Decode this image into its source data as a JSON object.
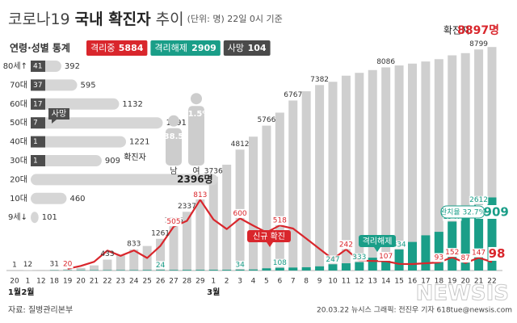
{
  "chart_data": [
    {
      "type": "bar",
      "title_parts": [
        "코로나19",
        "국내 확진자",
        "추이"
      ],
      "subtitle": "(단위: 명) 22일 0시 기준",
      "categories": [
        "20",
        "1",
        "12",
        "18",
        "19",
        "20",
        "21",
        "22",
        "23",
        "24",
        "25",
        "26",
        "27",
        "28",
        "29",
        "1",
        "2",
        "3",
        "4",
        "5",
        "6",
        "7",
        "8",
        "9",
        "10",
        "11",
        "12",
        "13",
        "14",
        "15",
        "16",
        "17",
        "18",
        "19",
        "20",
        "21",
        "22"
      ],
      "x_groups": [
        "1월",
        "2월",
        null,
        null,
        null,
        null,
        null,
        null,
        null,
        null,
        null,
        null,
        null,
        null,
        null,
        "3월",
        null,
        null,
        null,
        null,
        null,
        null,
        null,
        null,
        null,
        null,
        null,
        null,
        null,
        null,
        null,
        null,
        null,
        null,
        null,
        null,
        null
      ],
      "ylim": [
        0,
        9000
      ],
      "y2lim": [
        0,
        2600
      ],
      "series": [
        {
          "name": "확진자",
          "color": "#cfcfcf",
          "values": [
            1,
            12,
            28,
            31,
            51,
            104,
            204,
            433,
            602,
            833,
            977,
            1261,
            1766,
            2337,
            3150,
            3736,
            4212,
            4812,
            5328,
            5766,
            6284,
            6767,
            7134,
            7382,
            7513,
            7755,
            7869,
            7979,
            8086,
            8162,
            8236,
            8320,
            8413,
            8565,
            8652,
            8799,
            8897
          ],
          "value_labels": [
            "1",
            "12",
            null,
            "31",
            null,
            null,
            null,
            "433",
            null,
            "833",
            null,
            "1261",
            "1766",
            "2337",
            null,
            "3736",
            null,
            "4812",
            null,
            "5766",
            null,
            "6767",
            null,
            "7382",
            null,
            null,
            null,
            null,
            "8086",
            null,
            null,
            null,
            null,
            null,
            null,
            "8799",
            "8897명"
          ]
        },
        {
          "name": "격리해제",
          "color": "#1a9e88",
          "values": [
            0,
            0,
            0,
            10,
            12,
            16,
            16,
            16,
            18,
            18,
            22,
            24,
            24,
            26,
            27,
            30,
            30,
            34,
            41,
            88,
            108,
            118,
            130,
            166,
            247,
            288,
            333,
            510,
            600,
            834,
            1137,
            1401,
            1540,
            1947,
            2233,
            2612,
            2909
          ],
          "value_labels": [
            null,
            null,
            null,
            null,
            null,
            null,
            null,
            null,
            null,
            null,
            null,
            "24",
            null,
            null,
            null,
            null,
            null,
            "34",
            null,
            null,
            "108",
            null,
            null,
            null,
            "247",
            null,
            "333",
            null,
            null,
            "834",
            null,
            null,
            null,
            "1947",
            "2233",
            "2612",
            "2909"
          ]
        },
        {
          "name": "신규 확진",
          "color": "#d9262c",
          "type": "line",
          "axis": "y2",
          "values": [
            null,
            null,
            null,
            null,
            20,
            53,
            100,
            229,
            169,
            231,
            144,
            284,
            505,
            571,
            813,
            586,
            476,
            600,
            516,
            438,
            518,
            483,
            367,
            248,
            131,
            242,
            114,
            110,
            107,
            76,
            74,
            84,
            93,
            152,
            87,
            147,
            98
          ],
          "value_labels": [
            null,
            null,
            null,
            null,
            "20",
            null,
            null,
            null,
            null,
            null,
            null,
            null,
            "505",
            null,
            "813",
            null,
            null,
            "600",
            null,
            null,
            "518",
            null,
            null,
            null,
            null,
            "242",
            null,
            null,
            "107",
            null,
            null,
            null,
            "93",
            "152",
            "87",
            "147",
            "98"
          ]
        }
      ],
      "annotations": [
        "완치율 32.7%"
      ]
    },
    {
      "type": "hbar",
      "title": "연령·성별 통계",
      "categories": [
        "80세↑",
        "70대",
        "60대",
        "50대",
        "40대",
        "30대",
        "20대",
        "10대",
        "9세↓"
      ],
      "xlim": [
        0,
        2400
      ],
      "series": [
        {
          "name": "확진자",
          "color": "#d6d6d6",
          "values": [
            392,
            595,
            1132,
            1691,
            1221,
            909,
            2396,
            460,
            101
          ],
          "value_labels": [
            null,
            null,
            null,
            null,
            null,
            null,
            "2396명",
            null,
            null
          ]
        },
        {
          "name": "사망",
          "color": "#4d4d4d",
          "values": [
            41,
            37,
            17,
            7,
            1,
            1,
            null,
            null,
            null
          ]
        }
      ]
    },
    {
      "type": "pictogram",
      "categories": [
        "남",
        "여"
      ],
      "values": [
        38.5,
        61.5
      ],
      "value_labels": [
        null,
        "61.5%"
      ],
      "color": "#cdcdcd"
    }
  ],
  "status": [
    {
      "name": "격리중",
      "value": 5884,
      "color": "#d9262c"
    },
    {
      "name": "격리해제",
      "value": 2909,
      "color": "#1a9e88"
    },
    {
      "name": "사망",
      "value": 104,
      "color": "#4a4a4a"
    }
  ],
  "footer": {
    "source": "자료: 질병관리본부",
    "credit": "20.03.22 뉴시스 그래픽: 전진우 기자 618tue@newsis.com",
    "watermark": "NEWSIS"
  }
}
